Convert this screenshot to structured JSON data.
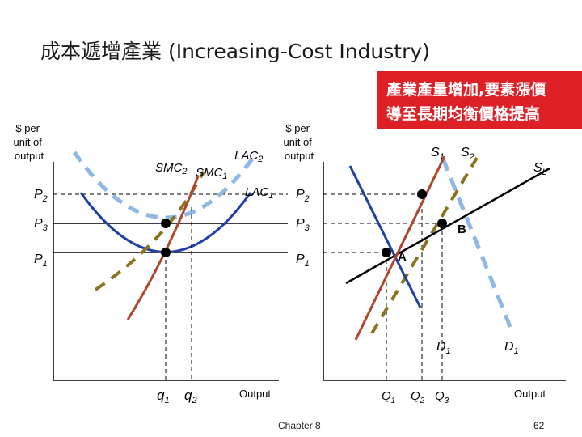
{
  "title": "成本遞增產業 (Increasing-Cost Industry)",
  "banner": {
    "line1": "產業產量增加,要素漲價",
    "line2": "導至長期均衡價格提高",
    "color": "#dd1f26"
  },
  "footer": {
    "chapter": "Chapter 8",
    "page": "62"
  },
  "colors": {
    "smc": "#b0452a",
    "lac": "#1e3fa8",
    "dashed_gold": "#8a7420",
    "s1": "#b0452a",
    "d_curve": "#1e3fa8",
    "d_dashed": "#8fb8e6",
    "sl": "#000000"
  },
  "chart_data": [
    {
      "type": "line",
      "panel": "firm",
      "ylabel": "$ per unit of output",
      "xlabel": "Output",
      "price_labels": [
        "P2",
        "P3",
        "P1"
      ],
      "quantity_labels": [
        "q1",
        "q2"
      ],
      "series": [
        {
          "name": "SMC2"
        },
        {
          "name": "SMC1"
        },
        {
          "name": "LAC2"
        },
        {
          "name": "LAC1"
        }
      ]
    },
    {
      "type": "line",
      "panel": "industry",
      "ylabel": "$ per unit of output",
      "xlabel": "Output",
      "price_labels": [
        "P2",
        "P3",
        "P1"
      ],
      "quantity_labels": [
        "Q1",
        "Q2",
        "Q3"
      ],
      "points": [
        "A",
        "B"
      ],
      "series": [
        {
          "name": "S1"
        },
        {
          "name": "S2"
        },
        {
          "name": "SL"
        },
        {
          "name": "D1"
        },
        {
          "name": "D1"
        }
      ]
    }
  ]
}
